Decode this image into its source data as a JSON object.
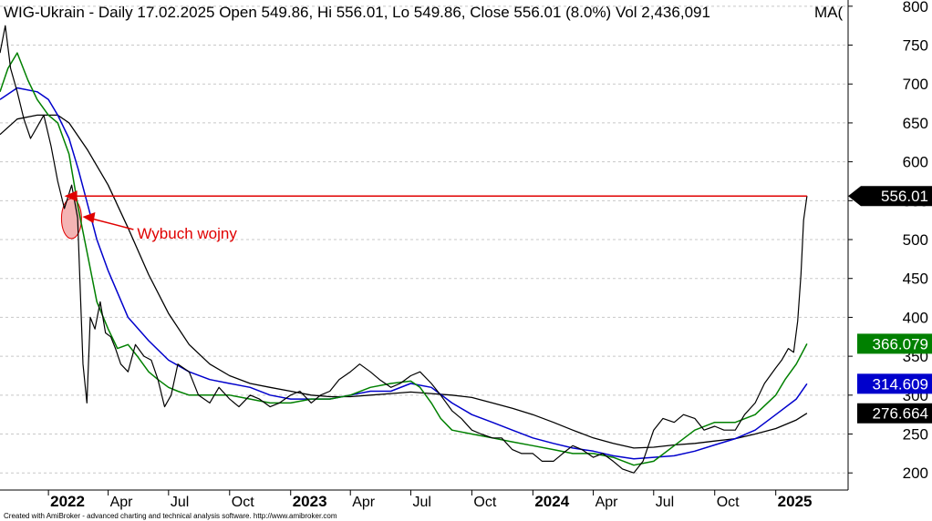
{
  "title": "WIG-Ukrain - Daily 17.02.2025 Open 549.86, Hi 556.01, Lo 549.86, Close 556.01 (8.0%) Vol 2,436,091",
  "ma_label": "MA(",
  "credit": "Created with AmiBroker - advanced charting and technical analysis software. http://www.amibroker.com",
  "colors": {
    "price": "#000000",
    "ma_short": "#008000",
    "ma_mid": "#0000cc",
    "ma_long": "#000000",
    "reference": "#e00000",
    "highlight_fill": "#f4b4b4"
  },
  "chart_data": {
    "type": "line",
    "ylim": [
      178,
      808
    ],
    "y_ticks": [
      200,
      250,
      300,
      350,
      400,
      450,
      500,
      550,
      600,
      650,
      700,
      750,
      800
    ],
    "x_ticks": [
      {
        "label": "2022",
        "year": true
      },
      {
        "label": "Apr",
        "year": false
      },
      {
        "label": "Jul",
        "year": false
      },
      {
        "label": "Oct",
        "year": false
      },
      {
        "label": "2023",
        "year": true
      },
      {
        "label": "Apr",
        "year": false
      },
      {
        "label": "Jul",
        "year": false
      },
      {
        "label": "Oct",
        "year": false
      },
      {
        "label": "2024",
        "year": true
      },
      {
        "label": "Apr",
        "year": false
      },
      {
        "label": "Jul",
        "year": false
      },
      {
        "label": "Oct",
        "year": false
      },
      {
        "label": "2025",
        "year": true
      }
    ],
    "x_tick_dates": [
      "2022-01-01",
      "2022-04-01",
      "2022-07-01",
      "2022-10-01",
      "2023-01-01",
      "2023-04-01",
      "2023-07-01",
      "2023-10-01",
      "2024-01-01",
      "2024-04-01",
      "2024-07-01",
      "2024-10-01",
      "2025-01-01"
    ],
    "x_range": [
      "2021-10-20",
      "2025-04-20"
    ],
    "reference_line": {
      "value": 556.01,
      "from": "2022-01-25",
      "to": "2025-02-17"
    },
    "last_values": [
      {
        "label": "556.01",
        "value": 556.01,
        "color": "#000000"
      },
      {
        "label": "366.079",
        "value": 366.079,
        "color": "#008000"
      },
      {
        "label": "314.609",
        "value": 314.609,
        "color": "#0000cc"
      },
      {
        "label": "276.664",
        "value": 276.664,
        "color": "#000000"
      }
    ],
    "annotation": {
      "text": "Wybuch wojny",
      "date": "2022-02-24",
      "value": 527
    },
    "series": [
      {
        "role": "price",
        "x": [
          "2021-10-20",
          "2021-10-28",
          "2021-11-05",
          "2021-11-15",
          "2021-11-25",
          "2021-12-05",
          "2021-12-15",
          "2021-12-25",
          "2022-01-05",
          "2022-01-15",
          "2022-01-25",
          "2022-02-05",
          "2022-02-14",
          "2022-02-22",
          "2022-02-28",
          "2022-03-05",
          "2022-03-12",
          "2022-03-20",
          "2022-03-28",
          "2022-04-05",
          "2022-04-12",
          "2022-04-20",
          "2022-05-01",
          "2022-05-12",
          "2022-05-25",
          "2022-06-05",
          "2022-06-15",
          "2022-06-25",
          "2022-07-05",
          "2022-07-15",
          "2022-08-01",
          "2022-08-15",
          "2022-09-01",
          "2022-09-15",
          "2022-10-01",
          "2022-10-15",
          "2022-11-01",
          "2022-11-15",
          "2022-12-01",
          "2022-12-15",
          "2023-01-01",
          "2023-01-15",
          "2023-02-01",
          "2023-02-15",
          "2023-03-01",
          "2023-03-15",
          "2023-04-01",
          "2023-04-15",
          "2023-05-01",
          "2023-05-15",
          "2023-06-01",
          "2023-06-15",
          "2023-07-01",
          "2023-07-15",
          "2023-08-01",
          "2023-08-15",
          "2023-09-01",
          "2023-09-15",
          "2023-10-01",
          "2023-10-15",
          "2023-11-01",
          "2023-11-15",
          "2023-12-01",
          "2023-12-15",
          "2024-01-01",
          "2024-01-15",
          "2024-02-01",
          "2024-02-15",
          "2024-03-01",
          "2024-03-15",
          "2024-04-01",
          "2024-04-15",
          "2024-05-01",
          "2024-05-15",
          "2024-06-01",
          "2024-06-15",
          "2024-07-01",
          "2024-07-15",
          "2024-08-01",
          "2024-08-15",
          "2024-09-01",
          "2024-09-15",
          "2024-10-01",
          "2024-10-15",
          "2024-11-01",
          "2024-11-15",
          "2024-12-01",
          "2024-12-15",
          "2025-01-01",
          "2025-01-10",
          "2025-01-20",
          "2025-01-28",
          "2025-02-03",
          "2025-02-08",
          "2025-02-12",
          "2025-02-17"
        ],
        "values": [
          740,
          775,
          720,
          690,
          655,
          630,
          645,
          660,
          620,
          575,
          540,
          570,
          528,
          340,
          290,
          400,
          385,
          420,
          380,
          375,
          360,
          340,
          330,
          365,
          350,
          345,
          320,
          285,
          300,
          340,
          330,
          300,
          290,
          310,
          295,
          285,
          300,
          295,
          285,
          290,
          300,
          305,
          290,
          300,
          305,
          320,
          330,
          340,
          330,
          320,
          310,
          315,
          325,
          330,
          315,
          300,
          280,
          270,
          255,
          250,
          245,
          245,
          230,
          225,
          225,
          215,
          215,
          225,
          235,
          230,
          220,
          225,
          215,
          205,
          200,
          215,
          255,
          270,
          265,
          275,
          270,
          255,
          260,
          255,
          255,
          275,
          290,
          315,
          335,
          345,
          360,
          355,
          395,
          455,
          525,
          556.01
        ]
      },
      {
        "role": "ma_short",
        "x": [
          "2021-10-20",
          "2021-11-01",
          "2021-11-15",
          "2021-12-01",
          "2021-12-15",
          "2022-01-01",
          "2022-01-15",
          "2022-02-01",
          "2022-02-15",
          "2022-03-01",
          "2022-03-15",
          "2022-04-01",
          "2022-04-15",
          "2022-05-01",
          "2022-05-15",
          "2022-06-01",
          "2022-06-15",
          "2022-07-01",
          "2022-07-15",
          "2022-08-01",
          "2022-09-01",
          "2022-10-01",
          "2022-11-01",
          "2022-12-01",
          "2023-01-01",
          "2023-02-01",
          "2023-03-01",
          "2023-04-01",
          "2023-05-01",
          "2023-06-01",
          "2023-07-01",
          "2023-07-15",
          "2023-08-01",
          "2023-08-15",
          "2023-09-01",
          "2023-10-01",
          "2023-11-01",
          "2023-12-01",
          "2024-01-01",
          "2024-02-01",
          "2024-03-01",
          "2024-04-01",
          "2024-05-01",
          "2024-06-01",
          "2024-07-01",
          "2024-08-01",
          "2024-09-01",
          "2024-10-01",
          "2024-11-01",
          "2024-12-01",
          "2025-01-01",
          "2025-01-15",
          "2025-02-01",
          "2025-02-17"
        ],
        "values": [
          690,
          720,
          740,
          705,
          680,
          660,
          650,
          610,
          540,
          480,
          420,
          385,
          360,
          365,
          350,
          330,
          320,
          310,
          305,
          300,
          300,
          300,
          295,
          290,
          290,
          295,
          295,
          300,
          310,
          315,
          318,
          310,
          290,
          270,
          255,
          250,
          245,
          240,
          235,
          230,
          225,
          225,
          220,
          210,
          215,
          235,
          255,
          265,
          265,
          275,
          300,
          320,
          340,
          366.079
        ]
      },
      {
        "role": "ma_mid",
        "x": [
          "2021-10-20",
          "2021-11-15",
          "2021-12-15",
          "2022-01-01",
          "2022-01-15",
          "2022-02-01",
          "2022-02-15",
          "2022-03-01",
          "2022-03-15",
          "2022-04-01",
          "2022-05-01",
          "2022-06-01",
          "2022-07-01",
          "2022-08-01",
          "2022-09-01",
          "2022-10-01",
          "2022-11-01",
          "2022-12-01",
          "2023-01-01",
          "2023-02-01",
          "2023-03-01",
          "2023-04-01",
          "2023-05-01",
          "2023-06-01",
          "2023-07-01",
          "2023-08-01",
          "2023-09-01",
          "2023-10-01",
          "2023-11-01",
          "2023-12-01",
          "2024-01-01",
          "2024-02-01",
          "2024-03-01",
          "2024-04-01",
          "2024-05-01",
          "2024-06-01",
          "2024-07-01",
          "2024-08-01",
          "2024-09-01",
          "2024-10-01",
          "2024-11-01",
          "2024-12-01",
          "2025-01-01",
          "2025-02-01",
          "2025-02-17"
        ],
        "values": [
          680,
          695,
          690,
          680,
          660,
          630,
          590,
          545,
          500,
          460,
          400,
          370,
          345,
          330,
          320,
          315,
          310,
          300,
          295,
          295,
          295,
          300,
          305,
          305,
          315,
          310,
          290,
          275,
          265,
          255,
          245,
          238,
          232,
          228,
          222,
          218,
          220,
          222,
          228,
          236,
          244,
          255,
          275,
          295,
          314.609
        ]
      },
      {
        "role": "ma_long",
        "x": [
          "2021-10-20",
          "2021-11-15",
          "2021-12-15",
          "2022-01-15",
          "2022-02-01",
          "2022-03-01",
          "2022-04-01",
          "2022-05-01",
          "2022-06-01",
          "2022-07-01",
          "2022-08-01",
          "2022-09-01",
          "2022-10-01",
          "2022-11-01",
          "2022-12-01",
          "2023-01-01",
          "2023-02-01",
          "2023-03-01",
          "2023-04-01",
          "2023-05-01",
          "2023-06-01",
          "2023-07-01",
          "2023-08-01",
          "2023-09-01",
          "2023-10-01",
          "2023-11-01",
          "2023-12-01",
          "2024-01-01",
          "2024-02-01",
          "2024-03-01",
          "2024-04-01",
          "2024-05-01",
          "2024-06-01",
          "2024-07-01",
          "2024-08-01",
          "2024-09-01",
          "2024-10-01",
          "2024-11-01",
          "2024-12-01",
          "2025-01-01",
          "2025-02-01",
          "2025-02-17"
        ],
        "values": [
          635,
          655,
          660,
          660,
          650,
          615,
          570,
          515,
          455,
          405,
          365,
          340,
          325,
          315,
          310,
          305,
          300,
          298,
          298,
          300,
          302,
          304,
          302,
          300,
          297,
          290,
          283,
          275,
          265,
          255,
          245,
          238,
          232,
          233,
          236,
          238,
          241,
          244,
          250,
          257,
          268,
          276.664
        ]
      }
    ]
  }
}
